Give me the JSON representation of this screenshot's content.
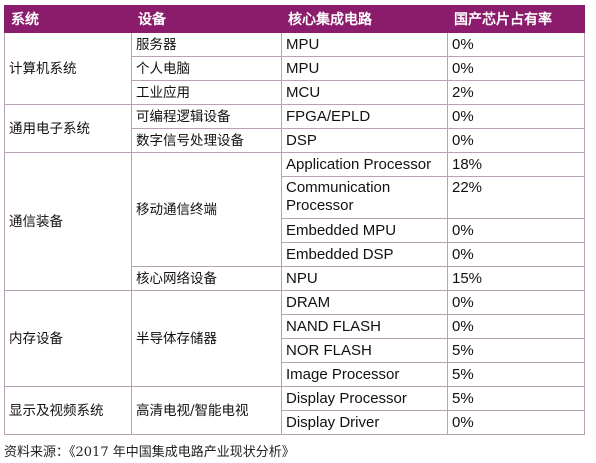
{
  "headers": [
    "系统",
    "设备",
    "核心集成电路",
    "国产芯片占有率"
  ],
  "rows": [
    {
      "system": "计算机系统",
      "device": "服务器",
      "core": "MPU",
      "rate": "0%"
    },
    {
      "device": "个人电脑",
      "core": "MPU",
      "rate": "0%"
    },
    {
      "device": "工业应用",
      "core": "MCU",
      "rate": "2%"
    },
    {
      "system": "通用电子系统",
      "device": "可编程逻辑设备",
      "core": "FPGA/EPLD",
      "rate": "0%"
    },
    {
      "device": "数字信号处理设备",
      "core": "DSP",
      "rate": "0%"
    },
    {
      "system": "通信装备",
      "device": "移动通信终端",
      "core": "Application Processor",
      "rate": "18%"
    },
    {
      "core": "Communication Processor",
      "rate": "22%"
    },
    {
      "core": "Embedded MPU",
      "rate": "0%"
    },
    {
      "core": "Embedded DSP",
      "rate": "0%"
    },
    {
      "device": "核心网络设备",
      "core": "NPU",
      "rate": "15%"
    },
    {
      "system": "内存设备",
      "device": "半导体存储器",
      "core": "DRAM",
      "rate": "0%"
    },
    {
      "core": "NAND FLASH",
      "rate": "0%"
    },
    {
      "core": "NOR FLASH",
      "rate": "5%"
    },
    {
      "core": "Image Processor",
      "rate": "5%"
    },
    {
      "system": "显示及视频系统",
      "device": "高清电视/智能电视",
      "core": "Display Processor",
      "rate": "5%"
    },
    {
      "core": "Display Driver",
      "rate": "0%"
    }
  ],
  "source": "资料来源：《2017 年中国集成电路产业现状分析》"
}
